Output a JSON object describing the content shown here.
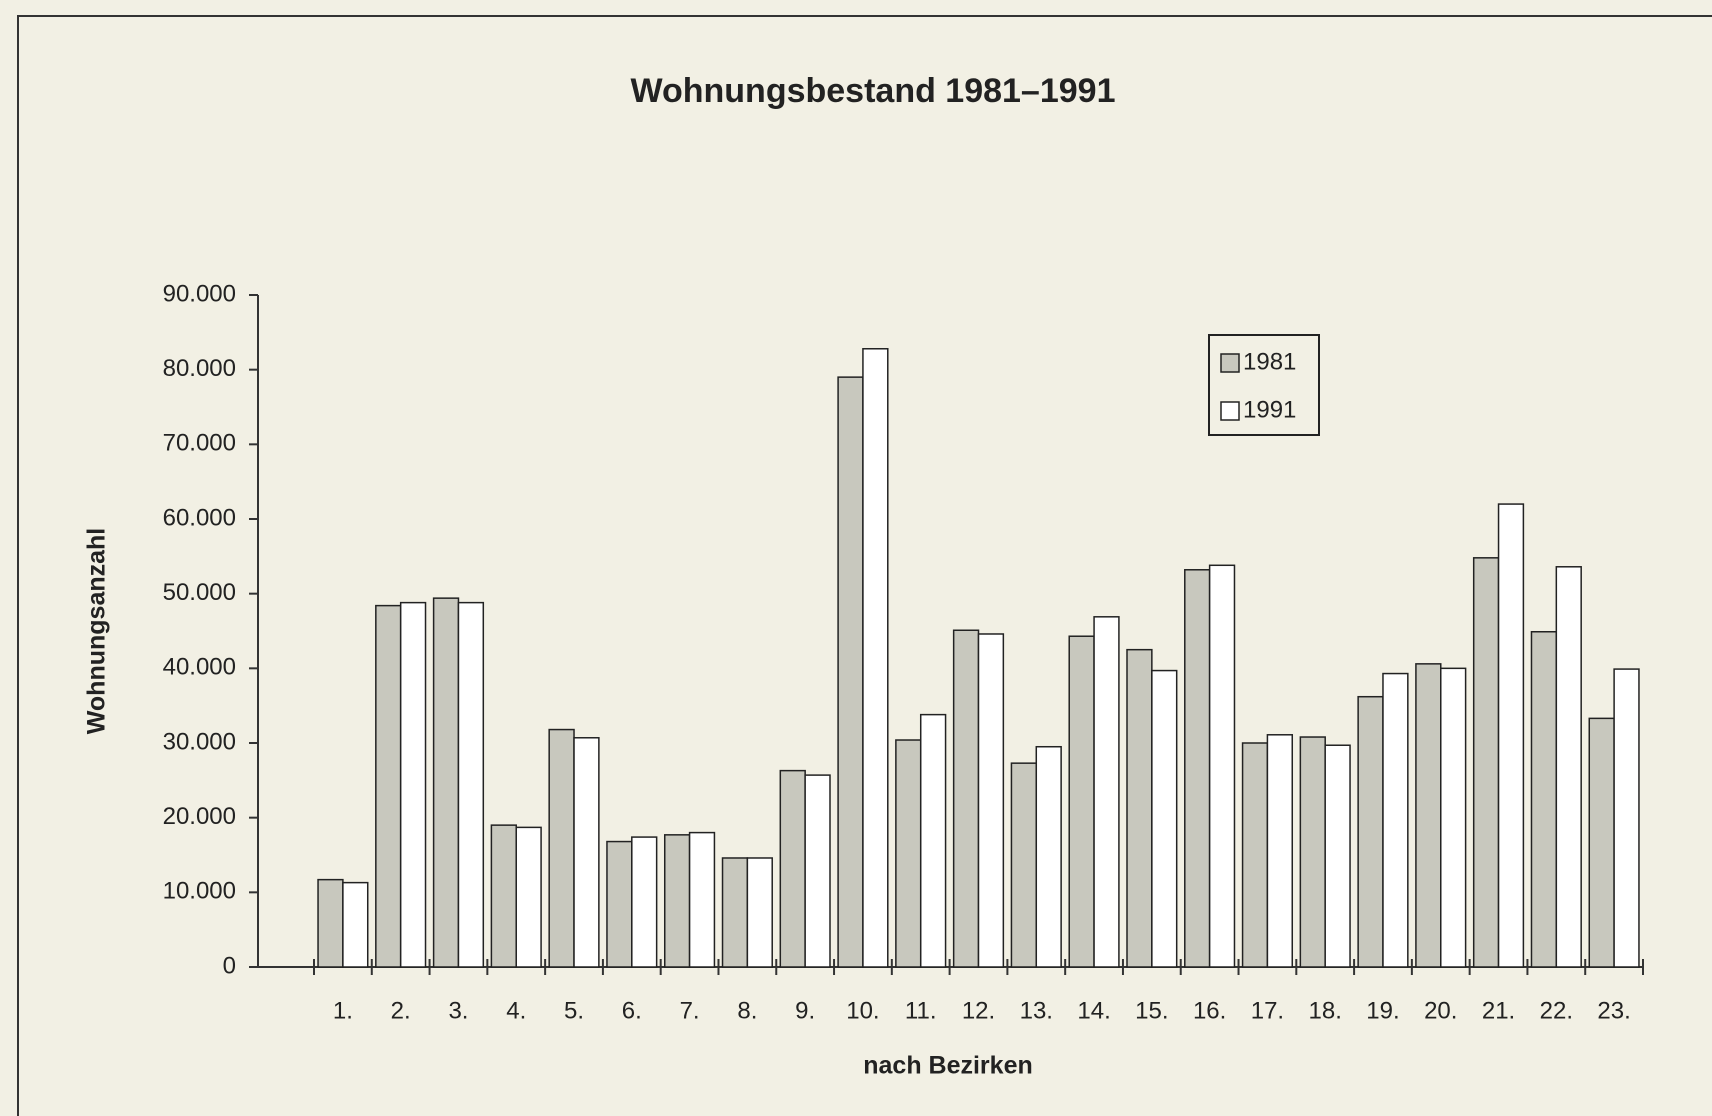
{
  "chart_data": {
    "type": "bar",
    "title": "Wohnungsbestand 1981–1991",
    "x_label": "nach Bezirken",
    "y_label": "Wohnungsanzahl",
    "categories": [
      "1.",
      "2.",
      "3.",
      "4.",
      "5.",
      "6.",
      "7.",
      "8.",
      "9.",
      "10.",
      "11.",
      "12.",
      "13.",
      "14.",
      "15.",
      "16.",
      "17.",
      "18.",
      "19.",
      "20.",
      "21.",
      "22.",
      "23."
    ],
    "series": [
      {
        "name": "1981",
        "color": "#c8c8be",
        "values": [
          11700,
          48400,
          49400,
          19000,
          31800,
          16800,
          17700,
          14600,
          26300,
          79000,
          30400,
          45100,
          27300,
          44300,
          42500,
          53200,
          30000,
          30800,
          36200,
          40600,
          54800,
          44900,
          33300
        ]
      },
      {
        "name": "1991",
        "color": "#ffffff",
        "values": [
          11300,
          48800,
          48800,
          18700,
          30700,
          17400,
          18000,
          14600,
          25700,
          82800,
          33800,
          44600,
          29500,
          46900,
          39700,
          53800,
          31100,
          29700,
          39300,
          40000,
          62000,
          53600,
          39900
        ]
      }
    ],
    "ylim": [
      0,
      90000
    ],
    "yticks": [
      0,
      {
        "value": 10000,
        "label": "10.000"
      },
      {
        "value": 20000,
        "label": "20.000"
      },
      {
        "value": 30000,
        "label": "30.000"
      },
      {
        "value": 40000,
        "label": "40.000"
      },
      {
        "value": 50000,
        "label": "50.000"
      },
      {
        "value": 60000,
        "label": "60.000"
      },
      {
        "value": 70000,
        "label": "70.000"
      },
      {
        "value": 80000,
        "label": "80.000"
      },
      {
        "value": 90000,
        "label": "90.000"
      }
    ],
    "legend": "upper right",
    "grid": false
  }
}
